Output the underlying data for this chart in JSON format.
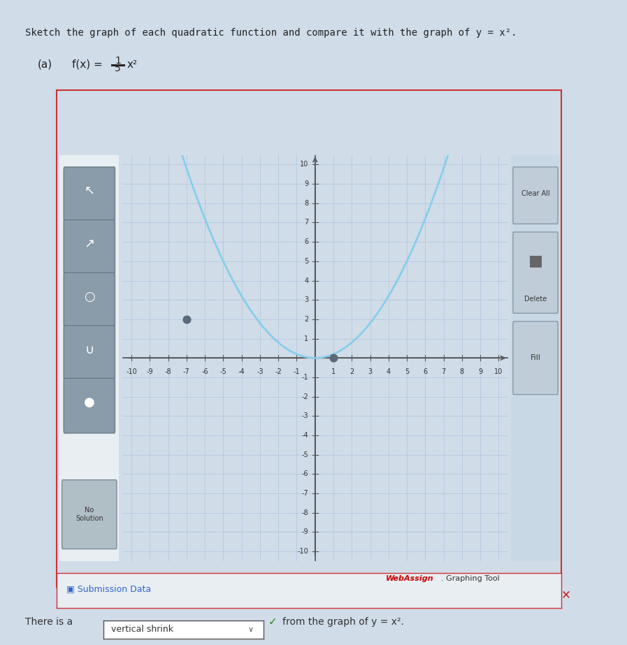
{
  "title_text": "Sketch the graph of each quadratic function and compare it with the graph of y = x².",
  "parabola_color": "#87CEEB",
  "parabola_linewidth": 2.0,
  "grid_color": "#b0c4de",
  "axis_color": "#555555",
  "bg_color": "#dce8f0",
  "panel_bg": "#e8eef2",
  "outer_bg": "#d0dce8",
  "xmin": -10,
  "xmax": 10,
  "ymin": -10,
  "ymax": 10,
  "xticks": [
    -10,
    -9,
    -8,
    -7,
    -6,
    -5,
    -4,
    -3,
    -2,
    -1,
    1,
    2,
    3,
    4,
    5,
    6,
    7,
    8,
    9,
    10
  ],
  "yticks": [
    -10,
    -9,
    -8,
    -7,
    -6,
    -5,
    -4,
    -3,
    -2,
    -1,
    1,
    2,
    3,
    4,
    5,
    6,
    7,
    8,
    9,
    10
  ],
  "dot1_x": -7,
  "dot1_y": 2,
  "dot2_x": 1,
  "dot2_y": 0,
  "dot_color": "#5a6a7a",
  "dot_size": 60,
  "webassign_color_web": "#cc0000",
  "submission_text": "Submission Data",
  "bottom_text1": "There is a",
  "bottom_input": "vertical shrink",
  "bottom_text2": "from the graph of y = x².",
  "sidebar_right_bg": "#c8d8e4",
  "no_solution_text": "No\nSolution",
  "x_mark_color": "#cc2222"
}
